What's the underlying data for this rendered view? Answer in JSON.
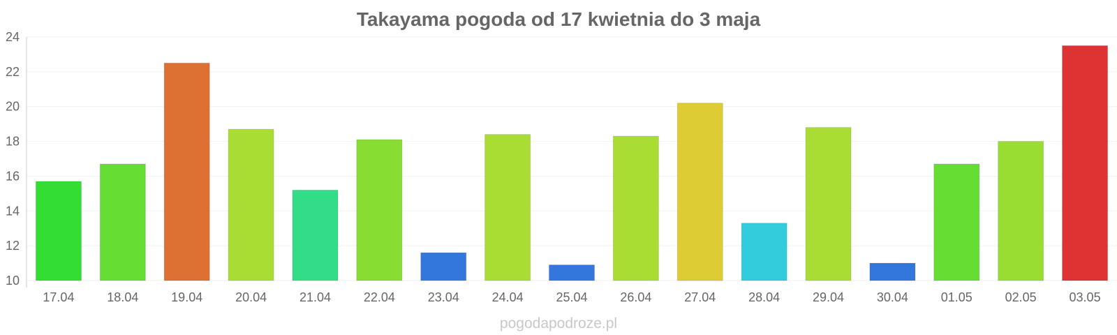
{
  "chart_data": {
    "type": "bar",
    "title": "Takayama pogoda od 17 kwietnia do 3 maja",
    "xlabel": "",
    "ylabel": "",
    "categories": [
      "17.04",
      "18.04",
      "19.04",
      "20.04",
      "21.04",
      "22.04",
      "23.04",
      "24.04",
      "25.04",
      "26.04",
      "27.04",
      "28.04",
      "29.04",
      "30.04",
      "01.05",
      "02.05",
      "03.05"
    ],
    "values": [
      15.7,
      16.7,
      22.5,
      18.7,
      15.2,
      18.1,
      11.6,
      18.4,
      10.9,
      18.3,
      20.2,
      13.3,
      18.8,
      11.0,
      16.7,
      18.0,
      23.5
    ],
    "colors": [
      "#33dd33",
      "#66dd33",
      "#dd7033",
      "#aadd33",
      "#33dd88",
      "#88dd33",
      "#3377dd",
      "#aadd33",
      "#3377dd",
      "#aadd33",
      "#ddcc33",
      "#33ccdd",
      "#aadd33",
      "#3377dd",
      "#66dd33",
      "#99dd33",
      "#dd3333"
    ],
    "ylim": [
      10,
      24
    ],
    "yticks": [
      10,
      12,
      14,
      16,
      18,
      20,
      22,
      24
    ],
    "grid": true,
    "legend": "none"
  },
  "watermark": "pogodapodroze.pl"
}
